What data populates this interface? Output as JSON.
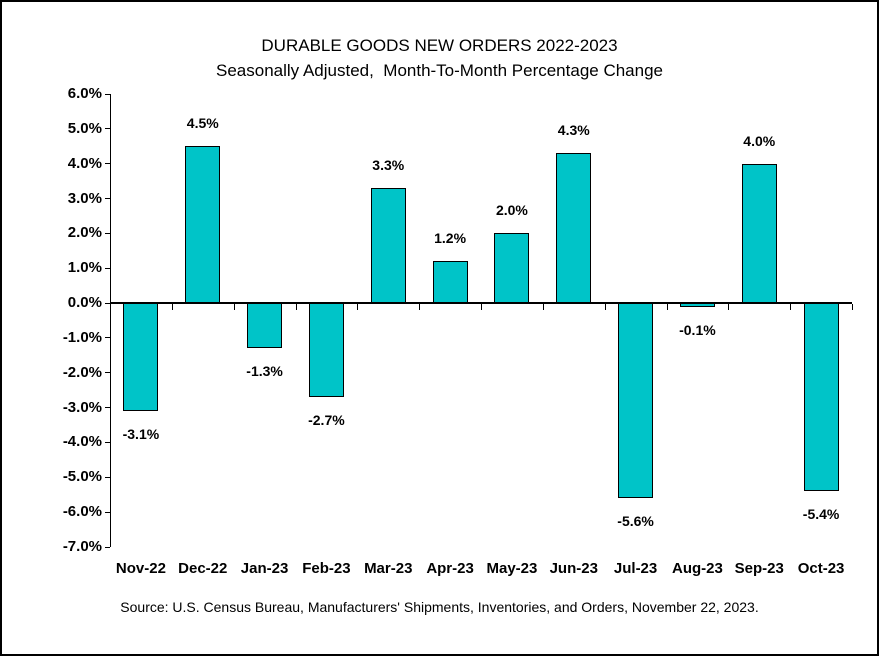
{
  "chart_data": {
    "type": "bar",
    "title": "DURABLE GOODS NEW ORDERS 2022-2023",
    "subtitle": "Seasonally Adjusted,  Month-To-Month Percentage Change",
    "source_note": "Source: U.S. Census Bureau, Manufacturers' Shipments, Inventories, and Orders, November 22, 2023.",
    "categories": [
      "Nov-22",
      "Dec-22",
      "Jan-23",
      "Feb-23",
      "Mar-23",
      "Apr-23",
      "May-23",
      "Jun-23",
      "Jul-23",
      "Aug-23",
      "Sep-23",
      "Oct-23"
    ],
    "values": [
      -3.1,
      4.5,
      -1.3,
      -2.7,
      3.3,
      1.2,
      2.0,
      4.3,
      -5.6,
      -0.1,
      4.0,
      -5.4
    ],
    "data_labels": [
      "-3.1%",
      "4.5%",
      "-1.3%",
      "-2.7%",
      "3.3%",
      "1.2%",
      "2.0%",
      "4.3%",
      "-5.6%",
      "-0.1%",
      "4.0%",
      "-5.4%"
    ],
    "ylabel": "",
    "xlabel": "",
    "ylim": [
      -7.0,
      6.0
    ],
    "ytick_step": 1.0,
    "ytick_labels": [
      "6.0%",
      "5.0%",
      "4.0%",
      "3.0%",
      "2.0%",
      "1.0%",
      "0.0%",
      "-1.0%",
      "-2.0%",
      "-3.0%",
      "-4.0%",
      "-5.0%",
      "-6.0%",
      "-7.0%"
    ],
    "grid": false,
    "legend": false,
    "bar_color": "#00C4C8",
    "bar_border_color": "#000000",
    "axis_color": "#000000",
    "text_color": "#000000",
    "background_color": "#FFFFFF"
  }
}
